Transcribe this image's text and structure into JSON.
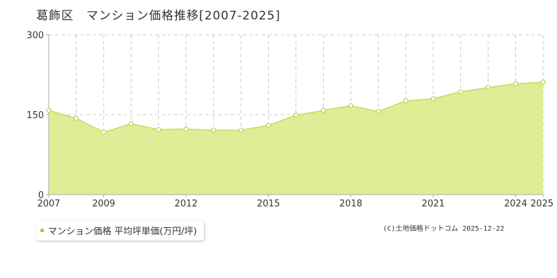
{
  "colors": {
    "fill": "#dcec90",
    "line": "#c3dc64",
    "marker_stroke": "#bcd85a",
    "grid": "#c8c8c8",
    "axis": "#aaaaaa",
    "legend_swatch": "#b2d235"
  },
  "chart_data": {
    "type": "area",
    "title": "葛飾区　マンション価格推移[2007-2025]",
    "x": [
      2007,
      2008,
      2009,
      2010,
      2011,
      2012,
      2013,
      2014,
      2015,
      2016,
      2017,
      2018,
      2019,
      2020,
      2021,
      2022,
      2023,
      2024,
      2025
    ],
    "x_tick_labels": [
      "2007",
      "2009",
      "2012",
      "2015",
      "2018",
      "2021",
      "2024",
      "2025"
    ],
    "x_tick_values": [
      2007,
      2009,
      2012,
      2015,
      2018,
      2021,
      2024,
      2025
    ],
    "y_tick_labels": [
      "300",
      "150",
      "0"
    ],
    "y_tick_values": [
      300,
      150,
      0
    ],
    "ylim": [
      0,
      300
    ],
    "xlim": [
      2007,
      2025
    ],
    "grid": true,
    "series": [
      {
        "name": "マンション価格 平均坪単価(万円/坪)",
        "values": [
          158,
          143,
          117,
          133,
          122,
          123,
          121,
          121,
          130,
          149,
          158,
          167,
          156,
          176,
          180,
          193,
          201,
          208,
          211
        ]
      }
    ],
    "legend": {
      "label": "マンション価格 平均坪単価(万円/坪)",
      "position": "bottom-left"
    }
  },
  "credit": "(C)土地価格ドットコム 2025-12-22"
}
